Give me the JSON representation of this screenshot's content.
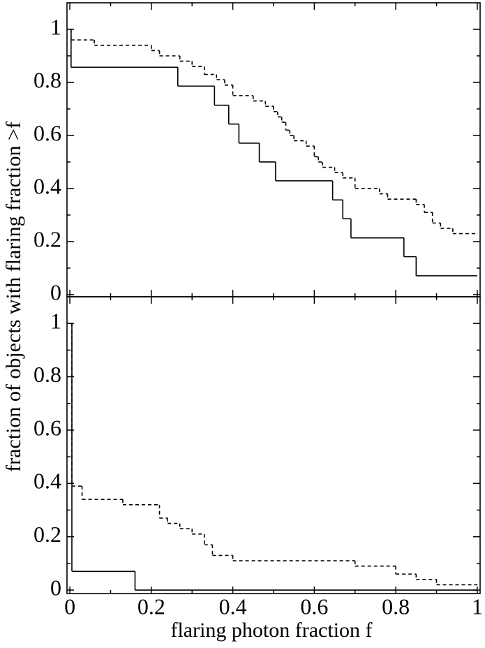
{
  "chart_data": [
    {
      "type": "line",
      "drawstyle": "steps-post",
      "ylabel": "fraction of objects with flaring fraction >f",
      "xlim": [
        -0.007,
        1.007
      ],
      "ylim": [
        -0.008,
        1.1
      ],
      "xticks": [
        0,
        0.2,
        0.4,
        0.6,
        0.8,
        1
      ],
      "xminorticks": [
        0.1,
        0.3,
        0.5,
        0.7,
        0.9
      ],
      "show_xticklabels": false,
      "yticks": [
        0,
        0.2,
        0.4,
        0.6,
        0.8,
        1
      ],
      "yminorticks": [
        0.1,
        0.3,
        0.5,
        0.7,
        0.9
      ],
      "series": [
        {
          "color": "#000000",
          "style": "solid",
          "x": [
            0,
            0.003,
            0.265,
            0.355,
            0.39,
            0.415,
            0.465,
            0.505,
            0.645,
            0.67,
            0.69,
            0.82,
            0.85,
            1.0
          ],
          "values": [
            1.0,
            0.857,
            0.786,
            0.714,
            0.643,
            0.571,
            0.5,
            0.429,
            0.357,
            0.286,
            0.214,
            0.143,
            0.071,
            0.071
          ]
        },
        {
          "color": "#000000",
          "style": "dashed",
          "x": [
            0,
            0.003,
            0.06,
            0.2,
            0.22,
            0.27,
            0.3,
            0.33,
            0.36,
            0.38,
            0.4,
            0.45,
            0.48,
            0.5,
            0.51,
            0.52,
            0.53,
            0.54,
            0.55,
            0.58,
            0.6,
            0.61,
            0.62,
            0.65,
            0.67,
            0.7,
            0.76,
            0.78,
            0.85,
            0.87,
            0.89,
            0.91,
            0.94,
            1.0
          ],
          "values": [
            1.0,
            0.96,
            0.94,
            0.92,
            0.9,
            0.88,
            0.86,
            0.83,
            0.81,
            0.79,
            0.75,
            0.73,
            0.71,
            0.69,
            0.67,
            0.65,
            0.62,
            0.6,
            0.58,
            0.56,
            0.52,
            0.5,
            0.48,
            0.46,
            0.44,
            0.4,
            0.38,
            0.36,
            0.34,
            0.31,
            0.27,
            0.25,
            0.23,
            0.23
          ]
        }
      ]
    },
    {
      "type": "line",
      "drawstyle": "steps-post",
      "xlabel": "flaring photon fraction f",
      "xlim": [
        -0.007,
        1.007
      ],
      "ylim": [
        -0.013,
        1.1
      ],
      "xticks": [
        0,
        0.2,
        0.4,
        0.6,
        0.8,
        1
      ],
      "xminorticks": [
        0.1,
        0.3,
        0.5,
        0.7,
        0.9
      ],
      "show_xticklabels": true,
      "yticks": [
        0,
        0.2,
        0.4,
        0.6,
        0.8,
        1
      ],
      "yminorticks": [
        0.1,
        0.3,
        0.5,
        0.7,
        0.9
      ],
      "series": [
        {
          "color": "#000000",
          "style": "solid",
          "x": [
            0,
            0.005,
            0.16,
            1.0
          ],
          "values": [
            1.0,
            0.07,
            0,
            0
          ]
        },
        {
          "color": "#000000",
          "style": "dashed",
          "x": [
            0,
            0.005,
            0.03,
            0.13,
            0.22,
            0.24,
            0.27,
            0.3,
            0.33,
            0.35,
            0.4,
            0.7,
            0.8,
            0.85,
            0.9,
            1.0
          ],
          "values": [
            1.0,
            0.39,
            0.34,
            0.32,
            0.27,
            0.25,
            0.23,
            0.21,
            0.17,
            0.13,
            0.11,
            0.09,
            0.06,
            0.04,
            0.02,
            0.02
          ]
        }
      ]
    }
  ]
}
